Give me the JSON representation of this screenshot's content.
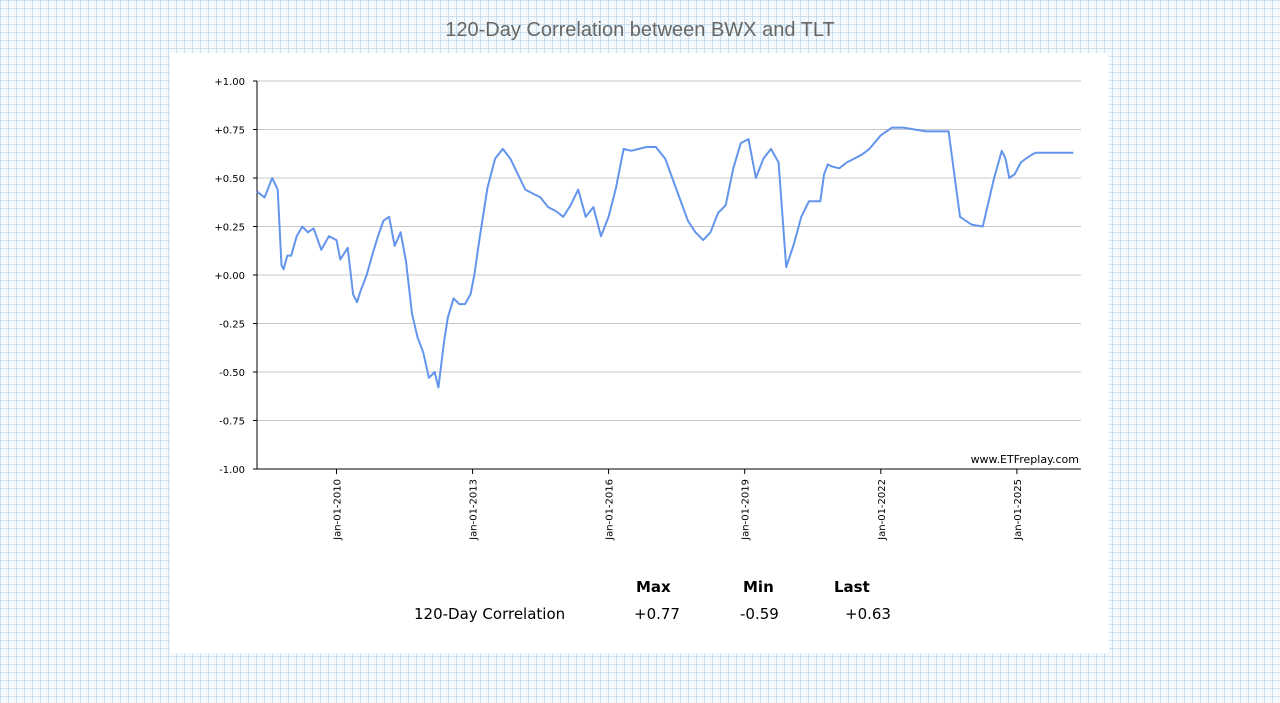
{
  "page": {
    "title": "120-Day Correlation between BWX and TLT"
  },
  "stats": {
    "headers": [
      "Max",
      "Min",
      "Last"
    ],
    "row_label": "120-Day Correlation",
    "values": [
      "+0.77",
      "-0.59",
      "+0.63"
    ]
  },
  "colors": {
    "line": "#6495ED",
    "grid": "#c8c8c8",
    "axis": "#000000"
  },
  "chart_data": {
    "type": "line",
    "title": "120-Day Correlation between BWX and TLT",
    "xlabel": "",
    "ylabel": "",
    "watermark": "www.ETFreplay.com",
    "ylim": [
      -1,
      1
    ],
    "xlim": [
      "2008-04-01",
      "2026-06-01"
    ],
    "y_ticks": [
      1,
      0.75,
      0.5,
      0.25,
      0,
      -0.25,
      -0.5,
      -0.75,
      -1
    ],
    "y_tick_labels": [
      "+1.00",
      "+0.75",
      "+0.50",
      "+0.25",
      "+0.00",
      "-0.25",
      "-0.50",
      "-0.75",
      "-1.00"
    ],
    "x_tick_labels": [
      "Jan-01-2010",
      "Jan-01-2013",
      "Jan-01-2016",
      "Jan-01-2019",
      "Jan-01-2022",
      "Jan-01-2025"
    ],
    "x_tick_dates": [
      "2010-01-01",
      "2013-01-01",
      "2016-01-01",
      "2019-01-01",
      "2022-01-01",
      "2025-01-01"
    ],
    "grid": "horizontal",
    "series": [
      {
        "x": [
          "2008-04-01",
          "2008-06-01",
          "2008-08-01",
          "2008-09-15",
          "2008-10-15",
          "2008-11-01",
          "2008-12-01",
          "2009-01-01",
          "2009-02-15",
          "2009-04-01",
          "2009-05-15",
          "2009-07-01",
          "2009-09-01",
          "2009-11-01",
          "2010-01-01",
          "2010-02-01",
          "2010-04-01",
          "2010-05-15",
          "2010-06-15",
          "2010-07-15",
          "2010-09-01",
          "2010-10-15",
          "2010-12-01",
          "2011-01-15",
          "2011-03-01",
          "2011-04-15",
          "2011-06-01",
          "2011-07-15",
          "2011-09-01",
          "2011-10-15",
          "2011-12-01",
          "2012-01-15",
          "2012-03-01",
          "2012-04-01",
          "2012-05-15",
          "2012-06-15",
          "2012-08-01",
          "2012-09-15",
          "2012-11-01",
          "2012-12-15",
          "2013-01-15",
          "2013-03-01",
          "2013-05-01",
          "2013-07-01",
          "2013-09-01",
          "2013-11-01",
          "2014-01-15",
          "2014-03-01",
          "2014-05-01",
          "2014-07-01",
          "2014-09-01",
          "2014-11-01",
          "2015-01-01",
          "2015-03-01",
          "2015-05-01",
          "2015-07-01",
          "2015-09-01",
          "2015-11-01",
          "2016-01-01",
          "2016-03-01",
          "2016-05-01",
          "2016-07-01",
          "2016-09-01",
          "2016-11-01",
          "2017-01-15",
          "2017-04-01",
          "2017-07-01",
          "2017-10-01",
          "2017-12-01",
          "2018-02-01",
          "2018-04-01",
          "2018-06-01",
          "2018-08-01",
          "2018-10-01",
          "2018-12-01",
          "2019-02-01",
          "2019-04-01",
          "2019-06-01",
          "2019-08-01",
          "2019-10-01",
          "2019-12-01",
          "2020-02-01",
          "2020-03-15",
          "2020-04-01",
          "2020-06-01",
          "2020-08-01",
          "2020-09-01",
          "2020-10-01",
          "2020-11-01",
          "2020-12-01",
          "2021-02-01",
          "2021-04-01",
          "2021-06-01",
          "2021-08-01",
          "2021-10-01",
          "2022-01-01",
          "2022-04-01",
          "2022-07-01",
          "2022-10-01",
          "2023-01-01",
          "2023-04-01",
          "2023-07-01",
          "2023-10-01",
          "2024-01-01",
          "2024-04-01",
          "2024-07-01",
          "2024-09-01",
          "2024-10-01",
          "2024-11-01",
          "2024-12-15",
          "2025-02-01",
          "2025-03-15",
          "2025-05-01",
          "2025-06-01",
          "2025-07-15",
          "2025-09-01",
          "2025-10-15",
          "2025-12-01",
          "2026-02-01",
          "2026-04-01"
        ],
        "y": [
          0.43,
          0.4,
          0.5,
          0.44,
          0.05,
          0.03,
          0.1,
          0.1,
          0.2,
          0.25,
          0.22,
          0.24,
          0.13,
          0.2,
          0.18,
          0.08,
          0.14,
          -0.1,
          -0.14,
          -0.08,
          0.0,
          0.1,
          0.2,
          0.28,
          0.3,
          0.15,
          0.22,
          0.07,
          -0.2,
          -0.32,
          -0.4,
          -0.53,
          -0.5,
          -0.58,
          -0.35,
          -0.22,
          -0.12,
          -0.15,
          -0.15,
          -0.1,
          0.0,
          0.2,
          0.45,
          0.6,
          0.65,
          0.6,
          0.5,
          0.44,
          0.42,
          0.4,
          0.35,
          0.33,
          0.3,
          0.36,
          0.44,
          0.3,
          0.35,
          0.2,
          0.3,
          0.45,
          0.65,
          0.64,
          0.65,
          0.66,
          0.66,
          0.6,
          0.44,
          0.28,
          0.22,
          0.18,
          0.22,
          0.32,
          0.36,
          0.55,
          0.68,
          0.7,
          0.5,
          0.6,
          0.65,
          0.58,
          0.04,
          0.16,
          0.26,
          0.3,
          0.38,
          0.38,
          0.38,
          0.52,
          0.57,
          0.56,
          0.55,
          0.58,
          0.6,
          0.62,
          0.65,
          0.72,
          0.76,
          0.76,
          0.75,
          0.74,
          0.74,
          0.74,
          0.3,
          0.26,
          0.25,
          0.5,
          0.64,
          0.6,
          0.5,
          0.52,
          0.58,
          0.6,
          0.62,
          0.63,
          0.63,
          0.63,
          0.63,
          0.63,
          0.63,
          0.63
        ]
      }
    ]
  }
}
